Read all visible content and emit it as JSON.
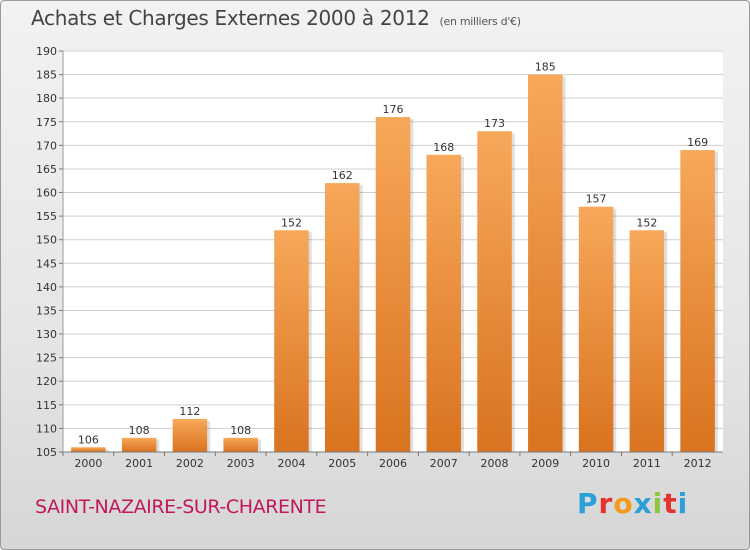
{
  "header": {
    "title": "Achats et Charges Externes 2000 à 2012",
    "unit": "(en milliers d'€)"
  },
  "footer": {
    "commune": "SAINT-NAZAIRE-SUR-CHARENTE",
    "brand": "Proxiti"
  },
  "colors": {
    "bar_top": "#f7a85a",
    "bar_bottom": "#d9731f",
    "commune_text": "#c2185b",
    "brand_letters": [
      "#2a9fd8",
      "#e2332d",
      "#f29a1f",
      "#2a9fd8",
      "#8cc63f",
      "#e2332d",
      "#2a9fd8"
    ]
  },
  "chart_data": {
    "type": "bar",
    "categories": [
      "2000",
      "2001",
      "2002",
      "2003",
      "2004",
      "2005",
      "2006",
      "2007",
      "2008",
      "2009",
      "2010",
      "2011",
      "2012"
    ],
    "values": [
      106,
      108,
      112,
      108,
      152,
      162,
      176,
      168,
      173,
      185,
      157,
      152,
      169
    ],
    "ylim": [
      105,
      190
    ],
    "yticks": [
      105,
      110,
      115,
      120,
      125,
      130,
      135,
      140,
      145,
      150,
      155,
      160,
      165,
      170,
      175,
      180,
      185,
      190
    ],
    "grid": true,
    "legend": "none"
  }
}
